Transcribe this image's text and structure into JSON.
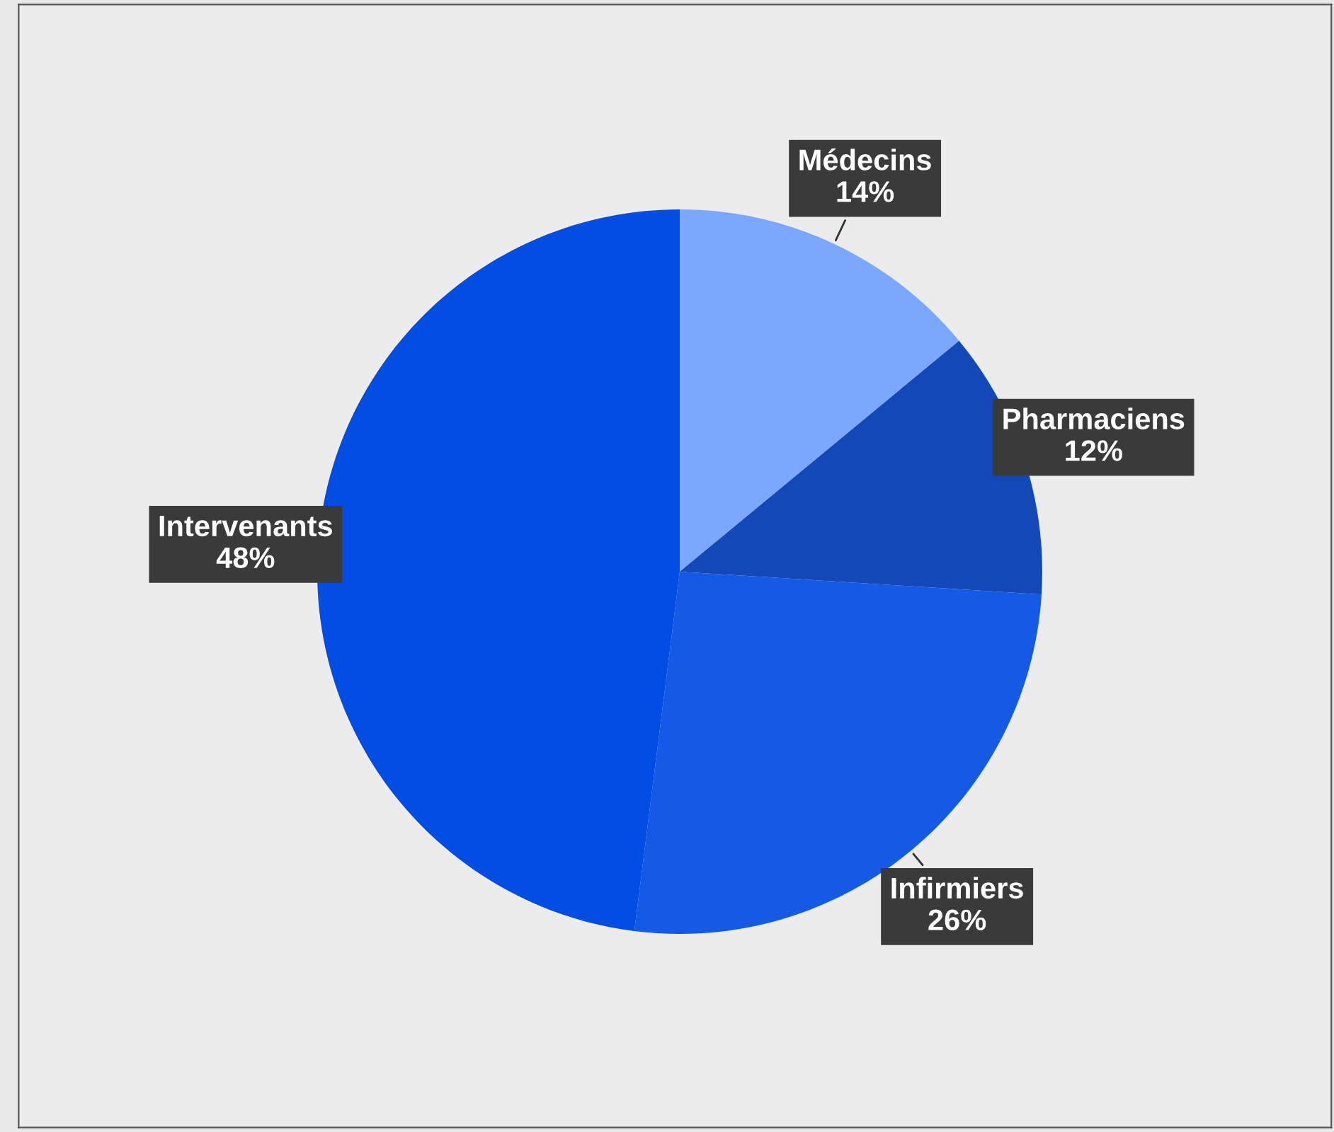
{
  "chart_data": {
    "type": "pie",
    "categories": [
      "Médecins",
      "Pharmaciens",
      "Infirmiers",
      "Intervenants"
    ],
    "values": [
      14,
      12,
      26,
      48
    ],
    "colors": [
      "#7ba7ff",
      "#1448b8",
      "#145ae6",
      "#004de3"
    ],
    "value_labels": [
      "14%",
      "12%",
      "26%",
      "48%"
    ],
    "legend": false
  }
}
